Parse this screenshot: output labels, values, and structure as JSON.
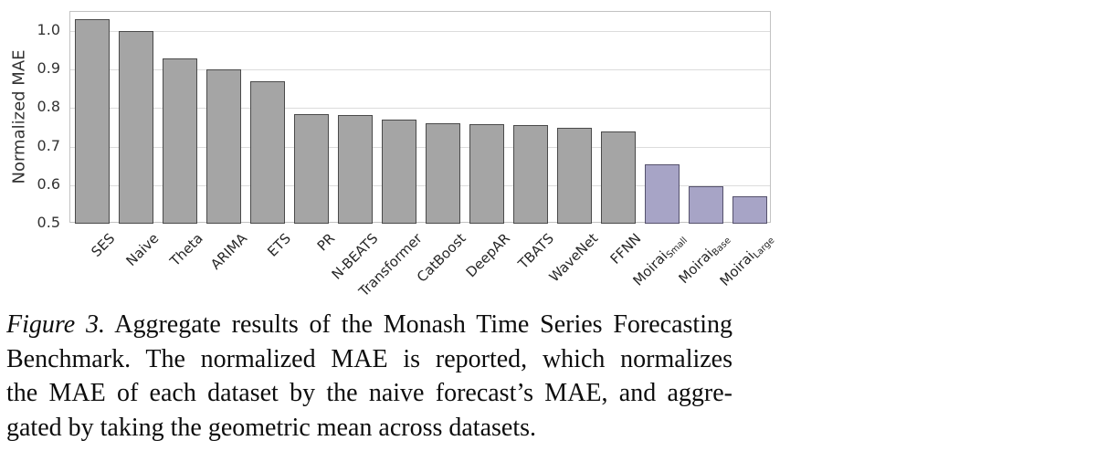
{
  "chart_data": {
    "type": "bar",
    "title": "",
    "xlabel": "",
    "ylabel": "Normalized MAE",
    "ylim": [
      0.5,
      1.05
    ],
    "yticks": [
      1.0,
      0.9,
      0.8,
      0.7,
      0.6,
      0.5
    ],
    "grid": "horizontal",
    "legend": "none",
    "bars": [
      {
        "label": "SES",
        "sub": "",
        "value": 1.03,
        "highlight": false
      },
      {
        "label": "Naive",
        "sub": "",
        "value": 1.0,
        "highlight": false
      },
      {
        "label": "Theta",
        "sub": "",
        "value": 0.93,
        "highlight": false
      },
      {
        "label": "ARIMA",
        "sub": "",
        "value": 0.9,
        "highlight": false
      },
      {
        "label": "ETS",
        "sub": "",
        "value": 0.87,
        "highlight": false
      },
      {
        "label": "PR",
        "sub": "",
        "value": 0.785,
        "highlight": false
      },
      {
        "label": "N-BEATS",
        "sub": "",
        "value": 0.783,
        "highlight": false
      },
      {
        "label": "Transformer",
        "sub": "",
        "value": 0.77,
        "highlight": false
      },
      {
        "label": "CatBoost",
        "sub": "",
        "value": 0.76,
        "highlight": false
      },
      {
        "label": "DeepAR",
        "sub": "",
        "value": 0.759,
        "highlight": false
      },
      {
        "label": "TBATS",
        "sub": "",
        "value": 0.757,
        "highlight": false
      },
      {
        "label": "WaveNet",
        "sub": "",
        "value": 0.748,
        "highlight": false
      },
      {
        "label": "FFNN",
        "sub": "",
        "value": 0.74,
        "highlight": false
      },
      {
        "label": "Moirai",
        "sub": "Small",
        "value": 0.655,
        "highlight": true
      },
      {
        "label": "Moirai",
        "sub": "Base",
        "value": 0.597,
        "highlight": true
      },
      {
        "label": "Moirai",
        "sub": "Large",
        "value": 0.571,
        "highlight": true
      }
    ],
    "colors": {
      "bar_default": "#a5a5a5",
      "bar_default_edge": "#4a4a4a",
      "bar_highlight": "#a7a4c6",
      "bar_highlight_edge": "#55516c",
      "gridline": "#dcdcdc",
      "spine": "#c2c2c2",
      "tick_text": "#333333",
      "xlabel_text": "#262626"
    }
  },
  "caption": {
    "label_italic": "Figure 3.",
    "line1_rest": " Aggregate results of the Monash Time Series Forecasting",
    "line2": "Benchmark. The normalized MAE is reported, which normalizes",
    "line3": "the MAE of each dataset by the naive forecast’s MAE, and aggre-",
    "line4": "gated by taking the geometric mean across datasets."
  }
}
